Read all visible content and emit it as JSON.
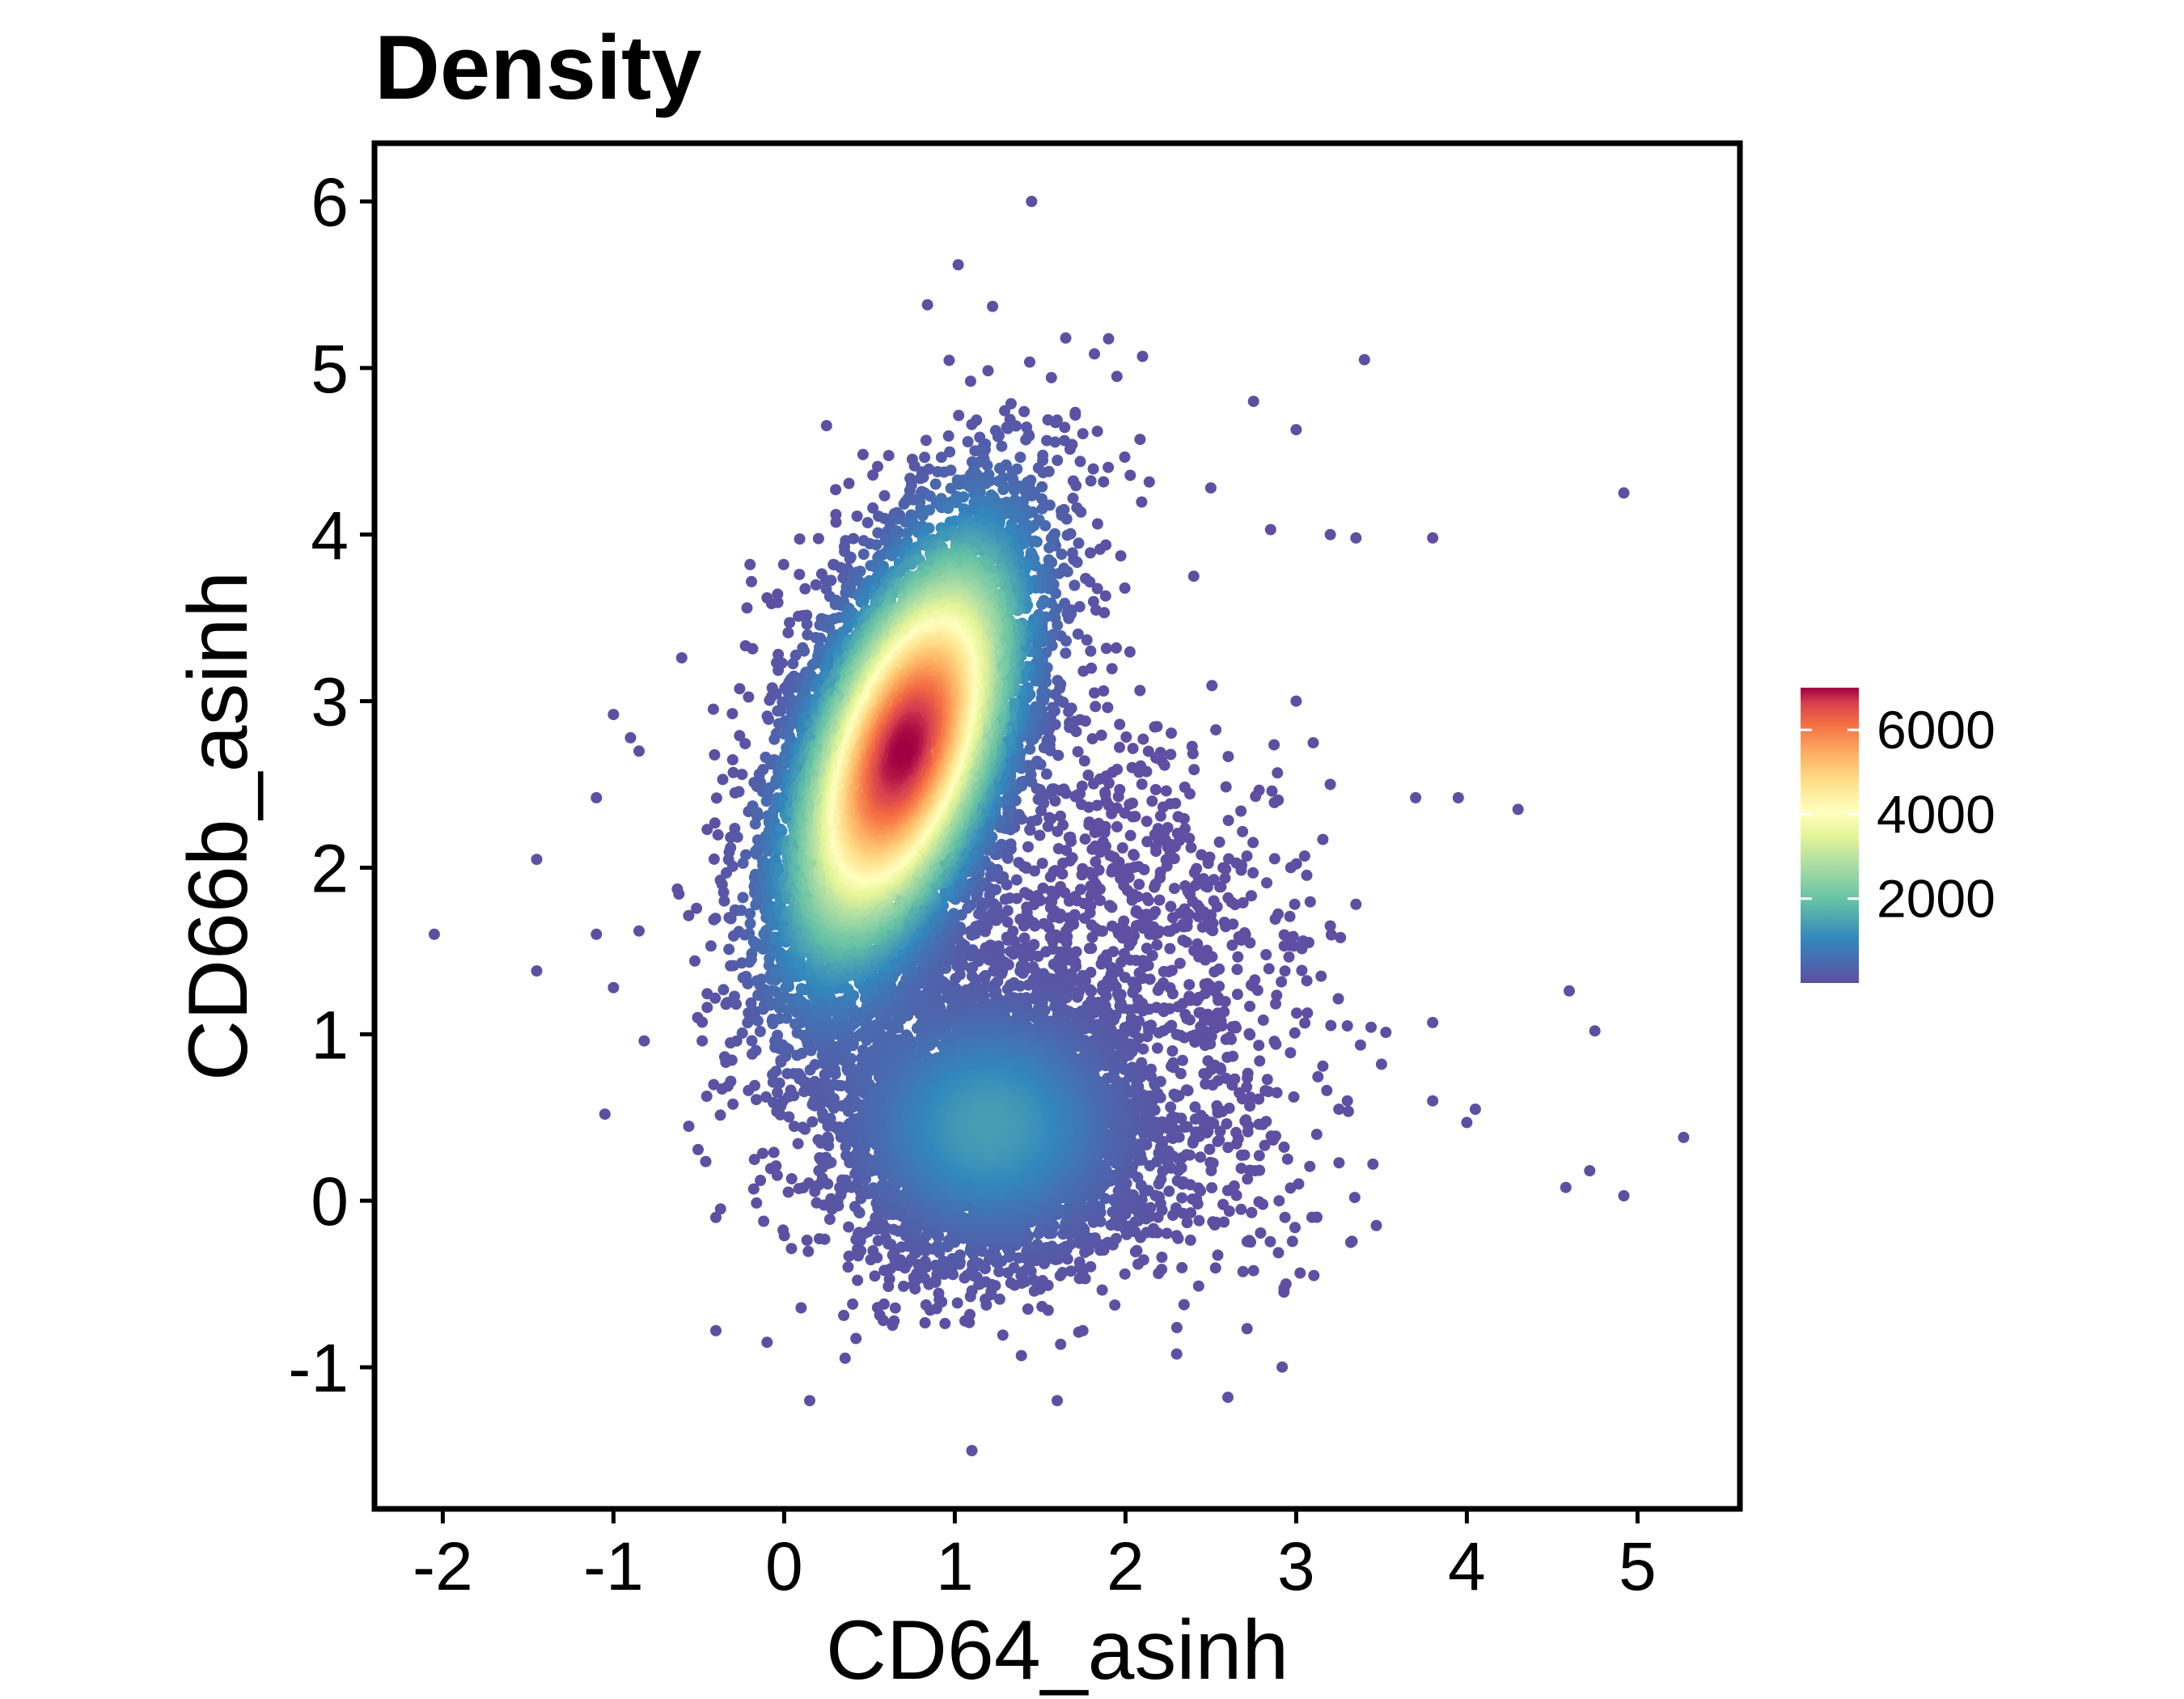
{
  "chart_data": {
    "type": "scatter",
    "title": "Density",
    "xlabel": "CD64_asinh",
    "ylabel": "CD66b_asinh",
    "xlim": [
      -2.4,
      5.6
    ],
    "ylim": [
      -1.85,
      6.35
    ],
    "x_ticks": [
      -2,
      -1,
      0,
      1,
      2,
      3,
      4,
      5
    ],
    "x_tick_labels": [
      "-2",
      "-1",
      "0",
      "1",
      "2",
      "3",
      "4",
      "5"
    ],
    "y_ticks": [
      -1,
      0,
      1,
      2,
      3,
      4,
      5,
      6
    ],
    "y_tick_labels": [
      "-1",
      "0",
      "1",
      "2",
      "3",
      "4",
      "5",
      "6"
    ],
    "grid": false,
    "legend": {
      "placement": "right",
      "color_scale": "Spectral",
      "range": [
        0,
        7000
      ],
      "ticks": [
        2000,
        4000,
        6000
      ],
      "tick_labels": [
        "2000",
        "4000",
        "6000"
      ]
    },
    "point_color_low": "#5e4fa2",
    "point_color_high": "#9e0142",
    "populations": [
      {
        "center": [
          0.7,
          2.7
        ],
        "sd": [
          0.38,
          0.72
        ],
        "correlation": 0.55,
        "peak_density": 7000
      },
      {
        "center": [
          1.2,
          0.45
        ],
        "sd": [
          0.45,
          0.42
        ],
        "correlation": 0.0,
        "peak_density": 1400
      }
    ],
    "points": [
      [
        1.45,
        6.0
      ],
      [
        1.02,
        5.62
      ],
      [
        0.84,
        5.38
      ],
      [
        3.4,
        5.05
      ],
      [
        1.65,
        5.18
      ],
      [
        2.1,
        5.07
      ],
      [
        1.95,
        4.95
      ],
      [
        2.75,
        4.8
      ],
      [
        3.0,
        4.63
      ],
      [
        4.92,
        4.25
      ],
      [
        3.2,
        4.0
      ],
      [
        3.35,
        3.98
      ],
      [
        3.8,
        3.98
      ],
      [
        2.85,
        4.03
      ],
      [
        2.5,
        4.28
      ],
      [
        2.4,
        3.75
      ],
      [
        -0.2,
        3.82
      ],
      [
        -0.1,
        3.62
      ],
      [
        0.3,
        3.58
      ],
      [
        -0.6,
        3.26
      ],
      [
        -1.0,
        2.92
      ],
      [
        -0.9,
        2.78
      ],
      [
        -0.85,
        2.7
      ],
      [
        -1.1,
        2.42
      ],
      [
        -1.45,
        2.05
      ],
      [
        -2.05,
        1.6
      ],
      [
        -1.1,
        1.6
      ],
      [
        -0.85,
        1.62
      ],
      [
        -1.45,
        1.38
      ],
      [
        -1.0,
        1.28
      ],
      [
        -0.82,
        0.96
      ],
      [
        -0.48,
        0.96
      ],
      [
        -1.05,
        0.52
      ],
      [
        -0.3,
        0.58
      ],
      [
        -0.4,
        -0.1
      ],
      [
        -0.4,
        -0.78
      ],
      [
        -0.1,
        -0.85
      ],
      [
        0.15,
        -1.2
      ],
      [
        1.1,
        -1.5
      ],
      [
        1.6,
        -1.2
      ],
      [
        2.6,
        -1.18
      ],
      [
        2.3,
        -0.92
      ],
      [
        1.75,
        -0.78
      ],
      [
        2.75,
        -0.42
      ],
      [
        3.8,
        1.07
      ],
      [
        3.8,
        0.6
      ],
      [
        4.05,
        0.55
      ],
      [
        4.0,
        0.47
      ],
      [
        4.6,
        1.26
      ],
      [
        4.75,
        1.02
      ],
      [
        4.58,
        0.08
      ],
      [
        4.72,
        0.18
      ],
      [
        4.92,
        0.03
      ],
      [
        5.27,
        0.38
      ],
      [
        3.7,
        2.42
      ],
      [
        3.95,
        2.42
      ],
      [
        4.3,
        2.35
      ],
      [
        3.35,
        1.78
      ],
      [
        3.2,
        1.65
      ],
      [
        3.05,
        2.07
      ],
      [
        3.2,
        2.5
      ],
      [
        3.1,
        2.75
      ],
      [
        3.0,
        3.0
      ],
      [
        3.3,
        1.05
      ],
      [
        3.5,
        0.82
      ],
      [
        3.25,
        0.55
      ],
      [
        3.45,
        0.22
      ],
      [
        3.3,
        0.6
      ],
      [
        2.9,
        0.0
      ],
      [
        2.95,
        0.25
      ]
    ]
  }
}
